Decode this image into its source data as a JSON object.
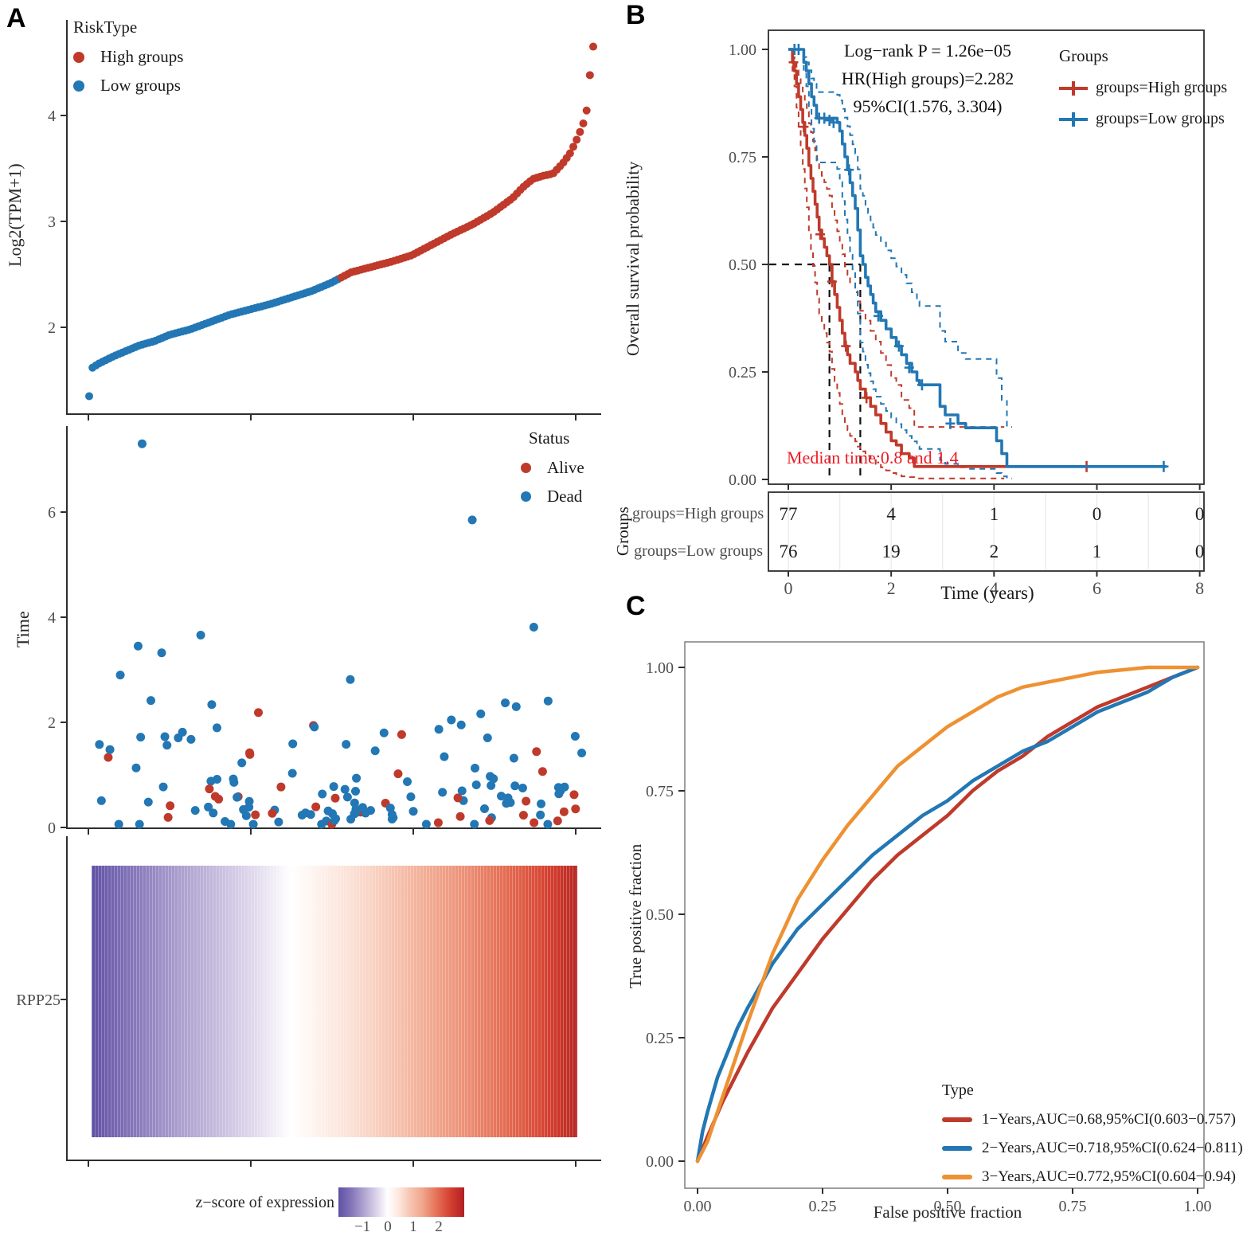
{
  "panels": {
    "a": "A",
    "b": "B",
    "c": "C"
  },
  "palette": {
    "high_red": "#bf3a2b",
    "low_blue": "#2277b4",
    "orange": "#ee9132",
    "axis": "#2e2e2e",
    "tick_text": "#4d4d4d",
    "annotation_red": "#ed1c24",
    "roc_box": "#7f7f7f",
    "table_grid": "#ececec"
  },
  "chart_data": [
    {
      "id": "risk-score-scatter",
      "type": "scatter",
      "ylabel": "Log2(TPM+1)",
      "yticks": [
        2,
        3,
        4
      ],
      "ylim": [
        1.2,
        4.9
      ],
      "legend": {
        "title": "RiskType",
        "items": [
          {
            "label": "High groups",
            "color": "#bf3a2b"
          },
          {
            "label": "Low groups",
            "color": "#2277b4"
          }
        ]
      },
      "n_samples": 153,
      "n_low": 76,
      "n_high": 77,
      "sorted_value_controls": [
        [
          0,
          1.35
        ],
        [
          0.0066,
          1.62
        ],
        [
          0.02,
          1.66
        ],
        [
          0.05,
          1.73
        ],
        [
          0.08,
          1.79
        ],
        [
          0.1,
          1.83
        ],
        [
          0.13,
          1.87
        ],
        [
          0.16,
          1.93
        ],
        [
          0.2,
          1.98
        ],
        [
          0.24,
          2.05
        ],
        [
          0.28,
          2.12
        ],
        [
          0.32,
          2.17
        ],
        [
          0.36,
          2.22
        ],
        [
          0.4,
          2.28
        ],
        [
          0.44,
          2.34
        ],
        [
          0.48,
          2.42
        ],
        [
          0.5,
          2.47
        ],
        [
          0.52,
          2.52
        ],
        [
          0.56,
          2.57
        ],
        [
          0.6,
          2.62
        ],
        [
          0.64,
          2.68
        ],
        [
          0.68,
          2.78
        ],
        [
          0.72,
          2.88
        ],
        [
          0.76,
          2.97
        ],
        [
          0.8,
          3.08
        ],
        [
          0.84,
          3.22
        ],
        [
          0.86,
          3.32
        ],
        [
          0.88,
          3.4
        ],
        [
          0.9,
          3.43
        ],
        [
          0.92,
          3.45
        ],
        [
          0.94,
          3.55
        ],
        [
          0.955,
          3.65
        ],
        [
          0.97,
          3.8
        ],
        [
          0.98,
          3.92
        ],
        [
          0.987,
          4.05
        ],
        [
          0.9934,
          4.38
        ],
        [
          1,
          4.65
        ]
      ]
    },
    {
      "id": "time-status-scatter",
      "type": "scatter",
      "ylabel": "Time",
      "yticks": [
        0,
        2,
        4,
        6
      ],
      "ylim": [
        0,
        7.5
      ],
      "legend": {
        "title": "Status",
        "items": [
          {
            "label": "Alive",
            "color": "#bf3a2b"
          },
          {
            "label": "Dead",
            "color": "#2277b4"
          }
        ]
      },
      "outliers": [
        {
          "x": 0.105,
          "y": 7.3,
          "status": "Dead"
        },
        {
          "x": 0.76,
          "y": 5.85,
          "status": "Dead"
        }
      ],
      "n_points": 148,
      "seed": 20,
      "y_scale": 1.05,
      "alive_fraction": 0.21,
      "alive_max_y": 2.65
    },
    {
      "id": "expression-heatmap",
      "type": "heatmap",
      "rows": [
        "RPP25"
      ],
      "n_columns": 153,
      "colorbar": {
        "label": "z−score of expression",
        "ticks": [
          -1,
          0,
          1,
          2
        ],
        "range": [
          -1.94,
          3.0
        ],
        "palette": [
          "#5f51a5",
          "#ffffff",
          "#b02025"
        ]
      }
    },
    {
      "id": "km-survival",
      "type": "line",
      "xlabel": "Time (years)",
      "ylabel": "Overall survival probability",
      "xticks": [
        0,
        2,
        4,
        6,
        8
      ],
      "ytick_labels": [
        "0.00",
        "0.25",
        "0.50",
        "0.75",
        "1.00"
      ],
      "ytick_values": [
        0,
        0.25,
        0.5,
        0.75,
        1
      ],
      "annotations": {
        "logrank": "Log−rank P = 1.26e−05",
        "hr": "HR(High groups)=2.282",
        "ci": "95%CI(1.576, 3.304)",
        "median": "Median time:0.8 and 1.4"
      },
      "legend": {
        "title": "Groups",
        "items": [
          {
            "label": "groups=High groups",
            "color": "#bf3a2b"
          },
          {
            "label": "groups=Low groups",
            "color": "#2277b4"
          }
        ]
      },
      "series": [
        {
          "name": "groups=High groups",
          "color": "#bf3a2b",
          "median_time": 0.8,
          "steps": [
            [
              0,
              1
            ],
            [
              0.08,
              0.97
            ],
            [
              0.12,
              0.95
            ],
            [
              0.16,
              0.92
            ],
            [
              0.2,
              0.89
            ],
            [
              0.24,
              0.86
            ],
            [
              0.28,
              0.83
            ],
            [
              0.32,
              0.8
            ],
            [
              0.36,
              0.77
            ],
            [
              0.4,
              0.73
            ],
            [
              0.44,
              0.7
            ],
            [
              0.48,
              0.67
            ],
            [
              0.52,
              0.64
            ],
            [
              0.56,
              0.61
            ],
            [
              0.6,
              0.58
            ],
            [
              0.65,
              0.56
            ],
            [
              0.7,
              0.54
            ],
            [
              0.75,
              0.52
            ],
            [
              0.8,
              0.5
            ],
            [
              0.85,
              0.46
            ],
            [
              0.9,
              0.43
            ],
            [
              0.95,
              0.4
            ],
            [
              1,
              0.37
            ],
            [
              1.05,
              0.34
            ],
            [
              1.1,
              0.31
            ],
            [
              1.15,
              0.29
            ],
            [
              1.2,
              0.27
            ],
            [
              1.3,
              0.25
            ],
            [
              1.35,
              0.23
            ],
            [
              1.4,
              0.21
            ],
            [
              1.5,
              0.19
            ],
            [
              1.6,
              0.17
            ],
            [
              1.7,
              0.15
            ],
            [
              1.8,
              0.13
            ],
            [
              1.9,
              0.11
            ],
            [
              2,
              0.09
            ],
            [
              2.1,
              0.08
            ],
            [
              2.2,
              0.06
            ],
            [
              2.35,
              0.05
            ],
            [
              2.45,
              0.03
            ],
            [
              5.85,
              0.03
            ]
          ],
          "censors": [
            [
              0.1,
              0.97
            ],
            [
              0.3,
              0.82
            ],
            [
              0.62,
              0.57
            ],
            [
              0.85,
              0.46
            ],
            [
              1.12,
              0.31
            ],
            [
              1.52,
              0.19
            ],
            [
              5.8,
              0.03
            ]
          ],
          "ci_tmax": 4.2
        },
        {
          "name": "groups=Low groups",
          "color": "#2277b4",
          "median_time": 1.4,
          "steps": [
            [
              0,
              1
            ],
            [
              0.25,
              1
            ],
            [
              0.3,
              0.97
            ],
            [
              0.35,
              0.95
            ],
            [
              0.4,
              0.92
            ],
            [
              0.45,
              0.89
            ],
            [
              0.5,
              0.87
            ],
            [
              0.55,
              0.84
            ],
            [
              0.95,
              0.83
            ],
            [
              1,
              0.81
            ],
            [
              1.05,
              0.78
            ],
            [
              1.1,
              0.75
            ],
            [
              1.15,
              0.72
            ],
            [
              1.2,
              0.69
            ],
            [
              1.25,
              0.66
            ],
            [
              1.3,
              0.63
            ],
            [
              1.35,
              0.58
            ],
            [
              1.4,
              0.52
            ],
            [
              1.45,
              0.5
            ],
            [
              1.5,
              0.47
            ],
            [
              1.55,
              0.45
            ],
            [
              1.6,
              0.43
            ],
            [
              1.65,
              0.41
            ],
            [
              1.7,
              0.39
            ],
            [
              1.8,
              0.37
            ],
            [
              1.9,
              0.35
            ],
            [
              2,
              0.33
            ],
            [
              2.1,
              0.31
            ],
            [
              2.2,
              0.29
            ],
            [
              2.3,
              0.27
            ],
            [
              2.4,
              0.25
            ],
            [
              2.5,
              0.23
            ],
            [
              2.55,
              0.22
            ],
            [
              2.85,
              0.22
            ],
            [
              2.95,
              0.17
            ],
            [
              3.05,
              0.15
            ],
            [
              3.3,
              0.13
            ],
            [
              3.45,
              0.12
            ],
            [
              3.95,
              0.12
            ],
            [
              4.05,
              0.09
            ],
            [
              4.15,
              0.06
            ],
            [
              4.25,
              0.03
            ],
            [
              7.35,
              0.03
            ]
          ],
          "censors": [
            [
              0.12,
              1
            ],
            [
              0.2,
              1
            ],
            [
              0.6,
              0.84
            ],
            [
              0.7,
              0.84
            ],
            [
              0.8,
              0.835
            ],
            [
              0.88,
              0.83
            ],
            [
              1.18,
              0.72
            ],
            [
              1.75,
              0.38
            ],
            [
              2.15,
              0.31
            ],
            [
              2.35,
              0.26
            ],
            [
              2.6,
              0.22
            ],
            [
              3.15,
              0.13
            ],
            [
              7.3,
              0.03
            ]
          ],
          "ci_tmax": 4.35
        }
      ],
      "risk_table": {
        "ylabel": "Groups",
        "times": [
          0,
          2,
          4,
          6,
          8
        ],
        "rows": [
          {
            "label": "groups=High groups",
            "counts": [
              77,
              4,
              1,
              0,
              0
            ]
          },
          {
            "label": "groups=Low groups",
            "counts": [
              76,
              19,
              2,
              1,
              0
            ]
          }
        ]
      }
    },
    {
      "id": "roc-curves",
      "type": "line",
      "xlabel": "False positive fraction",
      "ylabel": "True positive fraction",
      "xtick_labels": [
        "0.00",
        "0.25",
        "0.50",
        "0.75",
        "1.00"
      ],
      "ytick_labels": [
        "0.00",
        "0.25",
        "0.50",
        "0.75",
        "1.00"
      ],
      "tick_values": [
        0,
        0.25,
        0.5,
        0.75,
        1
      ],
      "legend": {
        "title": "Type",
        "items": [
          {
            "label": "1−Years,AUC=0.68,95%CI(0.603−0.757)",
            "color": "#bf3a2b"
          },
          {
            "label": "2−Years,AUC=0.718,95%CI(0.624−0.811)",
            "color": "#2277b4"
          },
          {
            "label": "3−Years,AUC=0.772,95%CI(0.604−0.94)",
            "color": "#ee9132"
          }
        ]
      },
      "series": [
        {
          "name": "1-Years",
          "auc": 0.68,
          "color": "#bf3a2b",
          "points": [
            [
              0,
              0
            ],
            [
              0.02,
              0.05
            ],
            [
              0.05,
              0.12
            ],
            [
              0.08,
              0.18
            ],
            [
              0.1,
              0.22
            ],
            [
              0.15,
              0.31
            ],
            [
              0.2,
              0.38
            ],
            [
              0.25,
              0.45
            ],
            [
              0.3,
              0.51
            ],
            [
              0.35,
              0.57
            ],
            [
              0.4,
              0.62
            ],
            [
              0.45,
              0.66
            ],
            [
              0.5,
              0.7
            ],
            [
              0.55,
              0.75
            ],
            [
              0.6,
              0.79
            ],
            [
              0.65,
              0.82
            ],
            [
              0.7,
              0.86
            ],
            [
              0.75,
              0.89
            ],
            [
              0.8,
              0.92
            ],
            [
              0.85,
              0.94
            ],
            [
              0.9,
              0.96
            ],
            [
              0.95,
              0.98
            ],
            [
              1,
              1
            ]
          ]
        },
        {
          "name": "2-Years",
          "auc": 0.718,
          "color": "#2277b4",
          "points": [
            [
              0,
              0
            ],
            [
              0.01,
              0.06
            ],
            [
              0.02,
              0.1
            ],
            [
              0.04,
              0.17
            ],
            [
              0.06,
              0.22
            ],
            [
              0.08,
              0.27
            ],
            [
              0.1,
              0.31
            ],
            [
              0.15,
              0.4
            ],
            [
              0.2,
              0.47
            ],
            [
              0.25,
              0.52
            ],
            [
              0.3,
              0.57
            ],
            [
              0.35,
              0.62
            ],
            [
              0.4,
              0.66
            ],
            [
              0.45,
              0.7
            ],
            [
              0.5,
              0.73
            ],
            [
              0.55,
              0.77
            ],
            [
              0.6,
              0.8
            ],
            [
              0.65,
              0.83
            ],
            [
              0.7,
              0.85
            ],
            [
              0.75,
              0.88
            ],
            [
              0.8,
              0.91
            ],
            [
              0.85,
              0.93
            ],
            [
              0.9,
              0.95
            ],
            [
              0.95,
              0.98
            ],
            [
              1,
              1
            ]
          ]
        },
        {
          "name": "3-Years",
          "auc": 0.772,
          "color": "#ee9132",
          "points": [
            [
              0,
              0
            ],
            [
              0.02,
              0.04
            ],
            [
              0.04,
              0.1
            ],
            [
              0.06,
              0.16
            ],
            [
              0.08,
              0.22
            ],
            [
              0.1,
              0.28
            ],
            [
              0.15,
              0.42
            ],
            [
              0.2,
              0.53
            ],
            [
              0.25,
              0.61
            ],
            [
              0.3,
              0.68
            ],
            [
              0.35,
              0.74
            ],
            [
              0.4,
              0.8
            ],
            [
              0.45,
              0.84
            ],
            [
              0.5,
              0.88
            ],
            [
              0.55,
              0.91
            ],
            [
              0.6,
              0.94
            ],
            [
              0.65,
              0.96
            ],
            [
              0.7,
              0.97
            ],
            [
              0.75,
              0.98
            ],
            [
              0.8,
              0.99
            ],
            [
              0.85,
              0.995
            ],
            [
              0.9,
              1
            ],
            [
              1,
              1
            ]
          ]
        }
      ]
    }
  ]
}
